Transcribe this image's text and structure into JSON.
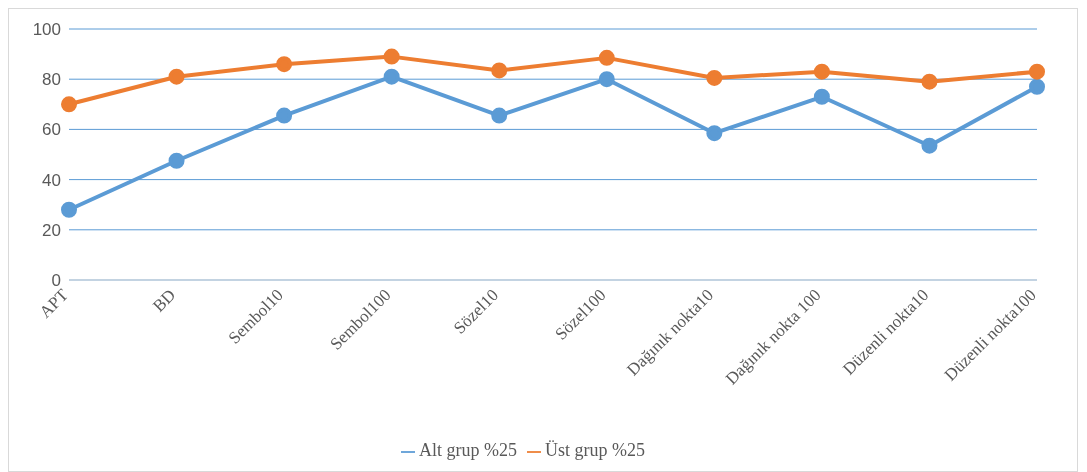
{
  "chart_data": {
    "type": "line",
    "categories": [
      "APT",
      "BD",
      "Sembol10",
      "Sembol100",
      "Sözel10",
      "Sözel100",
      "Dağınık nokta10",
      "Dağınık nokta 100",
      "Düzenli nokta10",
      "Düzenli nokta100"
    ],
    "series": [
      {
        "name": "Alt grup %25",
        "color": "#5b9bd5",
        "values": [
          28,
          47.5,
          65.5,
          81,
          65.5,
          80,
          58.5,
          73,
          53.5,
          77
        ]
      },
      {
        "name": "Üst grup %25",
        "color": "#ed7d31",
        "values": [
          70,
          81,
          86,
          89,
          83.5,
          88.5,
          80.5,
          83,
          79,
          83
        ]
      }
    ],
    "ylim": [
      0,
      100
    ],
    "yticks": [
      0,
      20,
      40,
      60,
      80,
      100
    ],
    "grid": "y",
    "legend": "bottom",
    "marker": "circle",
    "line_style": "solid"
  }
}
